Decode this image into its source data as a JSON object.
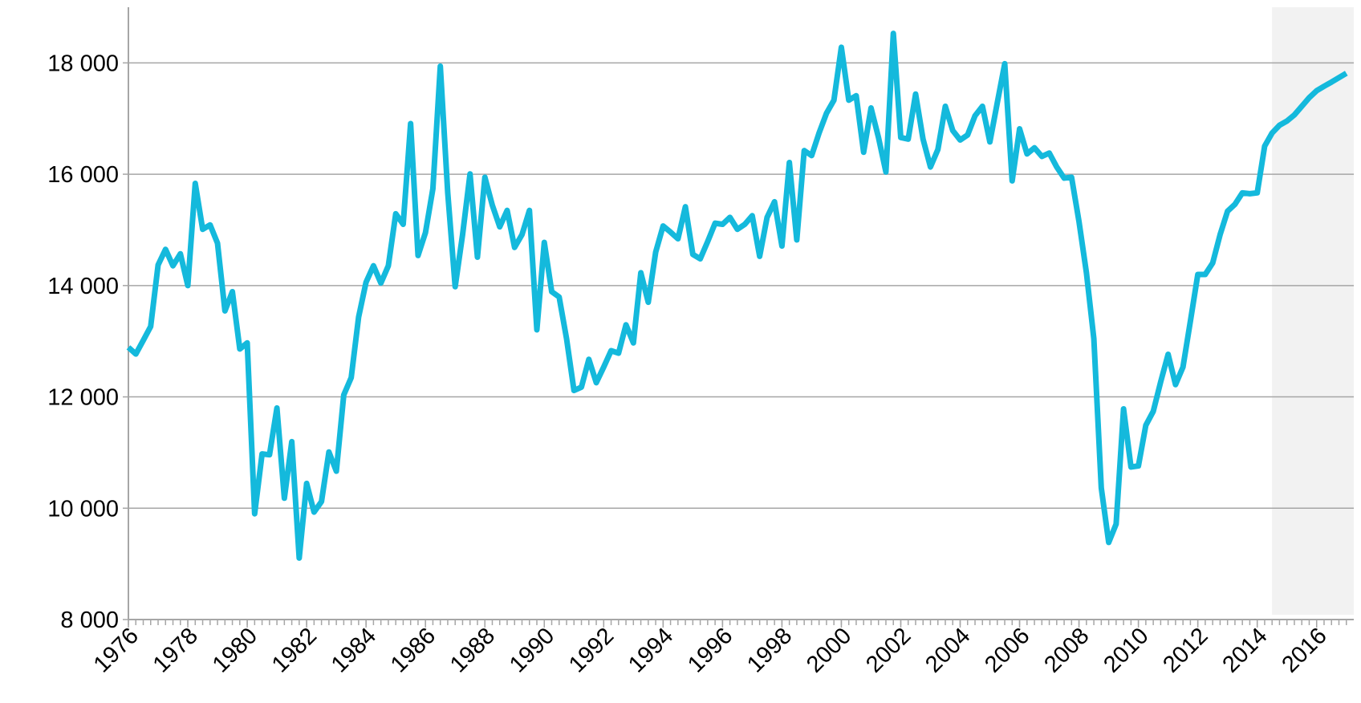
{
  "chart_data": {
    "type": "line",
    "x": [
      1976,
      1976.25,
      1976.5,
      1976.75,
      1977,
      1977.25,
      1977.5,
      1977.75,
      1978,
      1978.25,
      1978.5,
      1978.75,
      1979,
      1979.25,
      1979.5,
      1979.75,
      1980,
      1980.25,
      1980.5,
      1980.75,
      1981,
      1981.25,
      1981.5,
      1981.75,
      1982,
      1982.25,
      1982.5,
      1982.75,
      1983,
      1983.25,
      1983.5,
      1983.75,
      1984,
      1984.25,
      1984.5,
      1984.75,
      1985,
      1985.25,
      1985.5,
      1985.75,
      1986,
      1986.25,
      1986.5,
      1986.75,
      1987,
      1987.25,
      1987.5,
      1987.75,
      1988,
      1988.25,
      1988.5,
      1988.75,
      1989,
      1989.25,
      1989.5,
      1989.75,
      1990,
      1990.25,
      1990.5,
      1990.75,
      1991,
      1991.25,
      1991.5,
      1991.75,
      1992,
      1992.25,
      1992.5,
      1992.75,
      1993,
      1993.25,
      1993.5,
      1993.75,
      1994,
      1994.25,
      1994.5,
      1994.75,
      1995,
      1995.25,
      1995.5,
      1995.75,
      1996,
      1996.25,
      1996.5,
      1996.75,
      1997,
      1997.25,
      1997.5,
      1997.75,
      1998,
      1998.25,
      1998.5,
      1998.75,
      1999,
      1999.25,
      1999.5,
      1999.75,
      2000,
      2000.25,
      2000.5,
      2000.75,
      2001,
      2001.25,
      2001.5,
      2001.75,
      2002,
      2002.25,
      2002.5,
      2002.75,
      2003,
      2003.25,
      2003.5,
      2003.75,
      2004,
      2004.25,
      2004.5,
      2004.75,
      2005,
      2005.25,
      2005.5,
      2005.75,
      2006,
      2006.25,
      2006.5,
      2006.75,
      2007,
      2007.25,
      2007.5,
      2007.75,
      2008,
      2008.25,
      2008.5,
      2008.75,
      2009,
      2009.25,
      2009.5,
      2009.75,
      2010,
      2010.25,
      2010.5,
      2010.75,
      2011,
      2011.25,
      2011.5,
      2011.75,
      2012,
      2012.25,
      2012.5,
      2012.75,
      2013,
      2013.25,
      2013.5,
      2013.75,
      2014,
      2014.25,
      2014.5,
      2014.75,
      2015,
      2015.25,
      2015.5,
      2015.75,
      2016,
      2016.25,
      2016.5,
      2016.75,
      2017
    ],
    "series": [
      {
        "color": "#14b9dc",
        "values": [
          12890,
          12770,
          13015,
          13265,
          14370,
          14650,
          14355,
          14570,
          14000,
          15835,
          15010,
          15090,
          14760,
          13545,
          13890,
          12860,
          12970,
          9900,
          10975,
          10960,
          11800,
          10180,
          11195,
          9105,
          10445,
          9930,
          10120,
          11010,
          10665,
          12035,
          12345,
          13435,
          14060,
          14355,
          14045,
          14355,
          15290,
          15100,
          16910,
          14540,
          14950,
          15740,
          17940,
          15665,
          13980,
          14915,
          16005,
          14510,
          15945,
          15445,
          15055,
          15350,
          14685,
          14915,
          15350,
          13205,
          14775,
          13890,
          13795,
          13045,
          12115,
          12175,
          12675,
          12255,
          12535,
          12830,
          12785,
          13295,
          12970,
          14230,
          13700,
          14600,
          15070,
          14960,
          14840,
          15415,
          14560,
          14480,
          14790,
          15120,
          15100,
          15225,
          15010,
          15100,
          15255,
          14525,
          15225,
          15505,
          14710,
          16210,
          14820,
          16425,
          16335,
          16740,
          17095,
          17330,
          18280,
          17330,
          17410,
          16395,
          17190,
          16660,
          16040,
          18530,
          16660,
          16630,
          17440,
          16630,
          16130,
          16445,
          17220,
          16785,
          16615,
          16705,
          17050,
          17220,
          16580,
          17285,
          17985,
          15880,
          16815,
          16365,
          16475,
          16320,
          16380,
          16130,
          15930,
          15945,
          15150,
          14230,
          13045,
          10365,
          9385,
          9715,
          11785,
          10740,
          10760,
          11490,
          11740,
          12270,
          12765,
          12220,
          12535,
          13360,
          14200,
          14200,
          14405,
          14915,
          15335,
          15460,
          15665,
          15650,
          15665,
          16505,
          16740,
          16880,
          16955,
          17065,
          17220,
          17375,
          17500,
          17580,
          17655,
          17735,
          17815
        ]
      }
    ],
    "xlim": [
      1976,
      2017.25
    ],
    "xticks": [
      1976,
      1978,
      1980,
      1982,
      1984,
      1986,
      1988,
      1990,
      1992,
      1994,
      1996,
      1998,
      2000,
      2002,
      2004,
      2006,
      2008,
      2010,
      2012,
      2014,
      2016
    ],
    "ylim": [
      8000,
      19000
    ],
    "yticks": [
      {
        "value": 8000,
        "label": "8 000"
      },
      {
        "value": 10000,
        "label": "10 000"
      },
      {
        "value": 12000,
        "label": "12 000"
      },
      {
        "value": 14000,
        "label": "14 000"
      },
      {
        "value": 16000,
        "label": "16 000"
      },
      {
        "value": 18000,
        "label": "18 000"
      }
    ],
    "grid": true,
    "shade_xlim": [
      2014.5,
      2017.25
    ]
  }
}
